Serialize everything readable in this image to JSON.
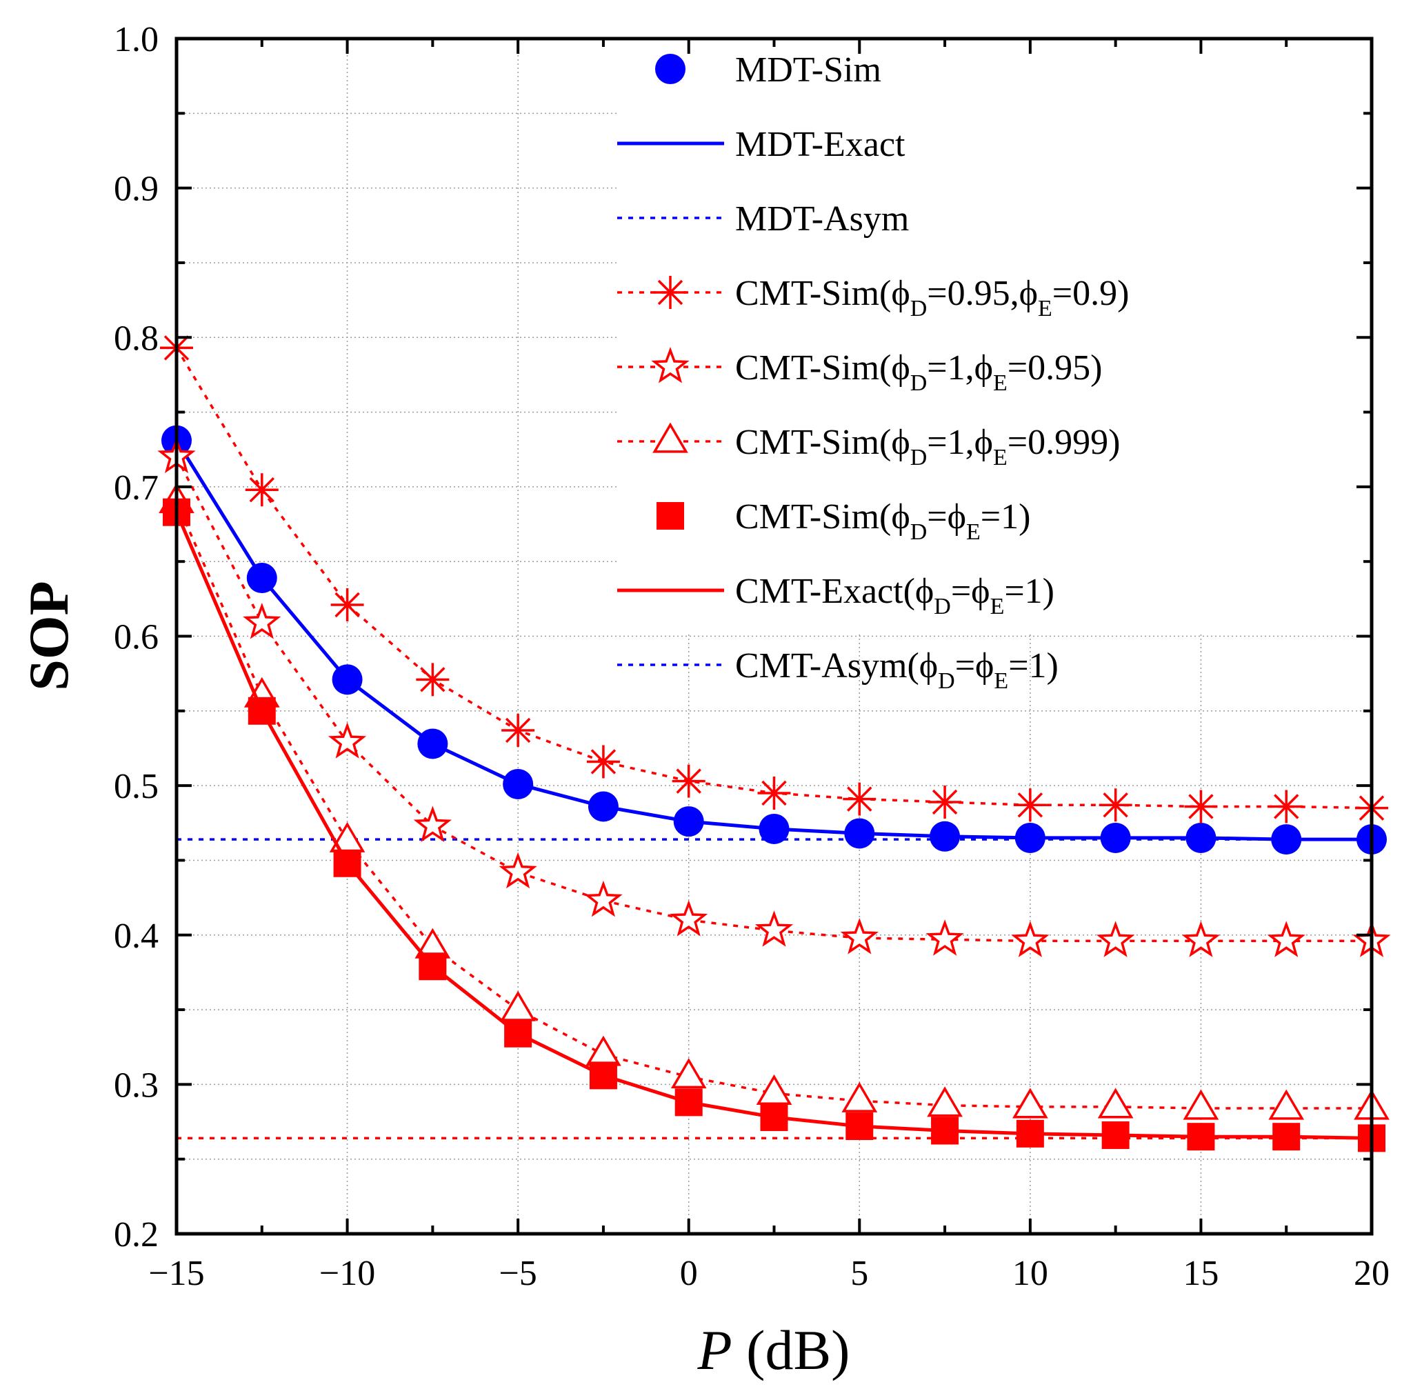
{
  "chart_data": {
    "type": "line",
    "title": "",
    "xlabel_var": "P",
    "xlabel_unit": " (dB)",
    "ylabel": "SOP",
    "xlim": [
      -15,
      20
    ],
    "ylim": [
      0.2,
      1.0
    ],
    "xticks": [
      -15,
      -10,
      -5,
      0,
      5,
      10,
      15,
      20
    ],
    "xtick_labels": [
      "−15",
      "−10",
      "−5",
      "0",
      "5",
      "10",
      "15",
      "20"
    ],
    "yticks": [
      0.2,
      0.3,
      0.4,
      0.5,
      0.6,
      0.7,
      0.8,
      0.9,
      1.0
    ],
    "ytick_labels": [
      "0.2",
      "0.3",
      "0.4",
      "0.5",
      "0.6",
      "0.7",
      "0.8",
      "0.9",
      "1.0"
    ],
    "grid": true,
    "legend_position": "top-right",
    "x": [
      -15,
      -12.5,
      -10,
      -7.5,
      -5,
      -2.5,
      0,
      2.5,
      5,
      7.5,
      10,
      12.5,
      15,
      17.5,
      20
    ],
    "series": [
      {
        "name": "MDT-Sim",
        "label_main": "MDT-Sim",
        "sub1": "",
        "mid": "",
        "sub2": "",
        "tail": "",
        "color": "#0000ff",
        "style": "marker",
        "marker": "circle",
        "values": [
          0.731,
          0.639,
          0.571,
          0.528,
          0.501,
          0.486,
          0.476,
          0.471,
          0.468,
          0.466,
          0.465,
          0.465,
          0.465,
          0.464,
          0.464
        ]
      },
      {
        "name": "MDT-Exact",
        "label_main": "MDT-Exact",
        "sub1": "",
        "mid": "",
        "sub2": "",
        "tail": "",
        "color": "#0000ff",
        "style": "solid",
        "marker": "none",
        "values": [
          0.731,
          0.639,
          0.571,
          0.528,
          0.501,
          0.486,
          0.476,
          0.471,
          0.468,
          0.466,
          0.465,
          0.465,
          0.465,
          0.464,
          0.464
        ]
      },
      {
        "name": "MDT-Asym",
        "label_main": "MDT-Asym",
        "sub1": "",
        "mid": "",
        "sub2": "",
        "tail": "",
        "color": "#0000ff",
        "style": "dotted",
        "marker": "none",
        "values": [
          0.464,
          0.464,
          0.464,
          0.464,
          0.464,
          0.464,
          0.464,
          0.464,
          0.464,
          0.464,
          0.464,
          0.464,
          0.464,
          0.464,
          0.464
        ]
      },
      {
        "name": "CMT-Sim(ϕD=0.95,ϕE=0.9)",
        "label_main": "CMT-Sim(ϕ",
        "sub1": "D",
        "mid": "=0.95,ϕ",
        "sub2": "E",
        "tail": "=0.9)",
        "color": "#ff0000",
        "style": "dotted",
        "marker": "asterisk",
        "values": [
          0.793,
          0.698,
          0.621,
          0.571,
          0.537,
          0.516,
          0.503,
          0.495,
          0.491,
          0.489,
          0.487,
          0.487,
          0.486,
          0.486,
          0.485
        ]
      },
      {
        "name": "CMT-Sim(ϕD=1,ϕE=0.95)",
        "label_main": "CMT-Sim(ϕ",
        "sub1": "D",
        "mid": "=1,ϕ",
        "sub2": "E",
        "tail": "=0.95)",
        "color": "#ff0000",
        "style": "dotted",
        "marker": "star",
        "values": [
          0.72,
          0.609,
          0.529,
          0.473,
          0.442,
          0.423,
          0.41,
          0.403,
          0.398,
          0.397,
          0.396,
          0.396,
          0.396,
          0.396,
          0.396
        ]
      },
      {
        "name": "CMT-Sim(ϕD=1,ϕE=0.999)",
        "label_main": "CMT-Sim(ϕ",
        "sub1": "D",
        "mid": "=1,ϕ",
        "sub2": "E",
        "tail": "=0.999)",
        "color": "#ff0000",
        "style": "dotted",
        "marker": "triangle",
        "values": [
          0.69,
          0.56,
          0.463,
          0.392,
          0.35,
          0.32,
          0.305,
          0.294,
          0.289,
          0.286,
          0.285,
          0.285,
          0.284,
          0.284,
          0.284
        ]
      },
      {
        "name": "CMT-Sim(ϕD=ϕE=1)",
        "label_main": "CMT-Sim(ϕ",
        "sub1": "D",
        "mid": "=ϕ",
        "sub2": "E",
        "tail": "=1)",
        "color": "#ff0000",
        "style": "marker",
        "marker": "square",
        "values": [
          0.683,
          0.55,
          0.448,
          0.379,
          0.334,
          0.306,
          0.288,
          0.278,
          0.272,
          0.269,
          0.267,
          0.266,
          0.265,
          0.265,
          0.264
        ]
      },
      {
        "name": "CMT-Exact(ϕD=ϕE=1)",
        "label_main": "CMT-Exact(ϕ",
        "sub1": "D",
        "mid": "=ϕ",
        "sub2": "E",
        "tail": "=1)",
        "color": "#ff0000",
        "style": "solid",
        "marker": "none",
        "values": [
          0.683,
          0.55,
          0.448,
          0.379,
          0.334,
          0.306,
          0.288,
          0.278,
          0.272,
          0.269,
          0.267,
          0.266,
          0.265,
          0.265,
          0.264
        ]
      },
      {
        "name": "CMT-Asym(ϕD=ϕE=1)",
        "label_main": "CMT-Asym(ϕ",
        "sub1": "D",
        "mid": "=ϕ",
        "sub2": "E",
        "tail": "=1)",
        "color": "#ff0000",
        "legend_color": "#0000ff",
        "style": "dotted",
        "marker": "none",
        "values": [
          0.264,
          0.264,
          0.264,
          0.264,
          0.264,
          0.264,
          0.264,
          0.264,
          0.264,
          0.264,
          0.264,
          0.264,
          0.264,
          0.264,
          0.264
        ]
      }
    ]
  }
}
